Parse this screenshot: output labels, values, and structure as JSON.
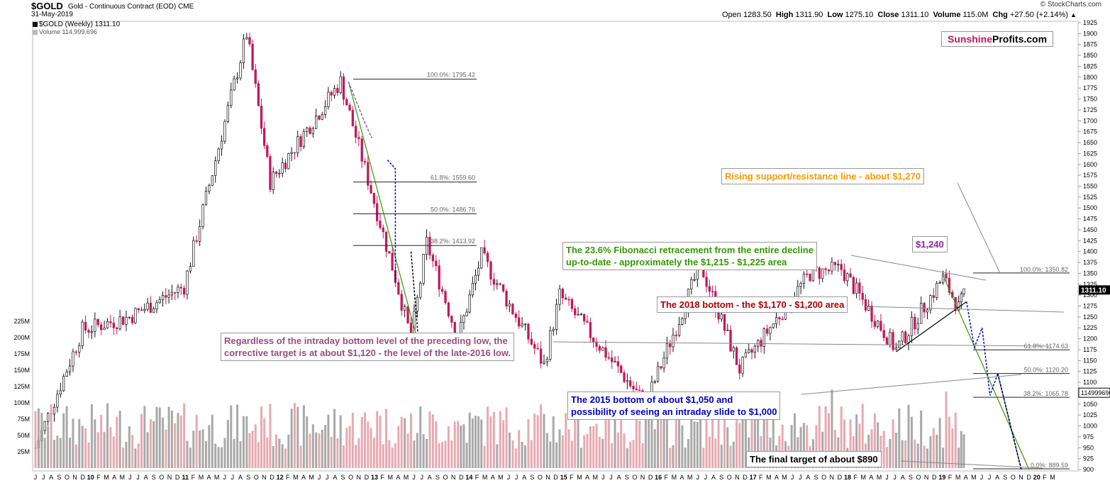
{
  "header": {
    "ticker": "$GOLD",
    "subtitle": "Gold - Continuous Contract (EOD)",
    "exchange": "CME",
    "date": "31-May-2019",
    "legend_price": "$GOLD (Weekly) 1311.10",
    "legend_volume": "Volume 114,999,696",
    "credit": "© StockCharts.com",
    "ohlc": {
      "open_label": "Open",
      "open": "1283.50",
      "high_label": "High",
      "high": "1311.90",
      "low_label": "Low",
      "low": "1275.10",
      "close_label": "Close",
      "close": "1311.10",
      "volume_label": "Volume",
      "volume": "115.0M",
      "chg_label": "Chg",
      "chg": "+27.50 (+2.14%)"
    }
  },
  "logo": {
    "part1": "Sunshine",
    "part2": "Profits.com",
    "color1": "#c2185b",
    "color2": "#000000"
  },
  "annotations": {
    "rising_line": "Rising support/resistance line - about $1,270",
    "fib_line1": "The 23.6% Fibonacci retracement from the entire decline",
    "fib_line2": "up-to-date - approximately the $1,215 - $1,225 area",
    "bottom_2018": "The 2018 bottom - the $1,170 - $1,200 area",
    "regardless_line1": "Regardless of the intraday bottom level of the preceding low, the",
    "regardless_line2": "corrective target is at about $1,120 - the level of the late-2016 low.",
    "bottom_2015_line1": "The 2015 bottom of about $1,050 and",
    "bottom_2015_line2": "possibility of seeing an intraday slide to $1,000",
    "final_target": "The final target of about $890",
    "price_1240": "$1,240"
  },
  "colors": {
    "up": "#111111",
    "down": "#c2185b",
    "vol_up": "#a0a0a0",
    "vol_down": "#e5a0a8",
    "orange": "#ff9900",
    "green": "#339900",
    "darkred": "#b00000",
    "purple": "#9b59b6",
    "blue": "#0000cc",
    "fib_purple": "#7b1fa2"
  },
  "chart_data": {
    "type": "candlestick",
    "title": "$GOLD Gold - Continuous Contract (EOD)",
    "interval": "Weekly",
    "ylim": [
      900,
      1925
    ],
    "y_ticks": [
      900,
      925,
      950,
      975,
      1000,
      1025,
      1050,
      1075,
      1100,
      1125,
      1150,
      1175,
      1200,
      1225,
      1250,
      1275,
      1300,
      1325,
      1350,
      1375,
      1400,
      1425,
      1450,
      1475,
      1500,
      1525,
      1550,
      1575,
      1600,
      1625,
      1650,
      1675,
      1700,
      1725,
      1750,
      1775,
      1800,
      1825,
      1850,
      1875,
      1900,
      1925
    ],
    "volume_ticks": [
      "25M",
      "50M",
      "75M",
      "100M",
      "125M",
      "150M",
      "175M",
      "200M",
      "225M"
    ],
    "volume_tick_values": [
      25,
      50,
      75,
      100,
      125,
      150,
      175,
      200,
      225
    ],
    "last_price_label": "1311.10",
    "last_volume_label": "114999696",
    "x_month_labels": [
      "J",
      "J",
      "A",
      "S",
      "O",
      "N",
      "D",
      "10",
      "F",
      "M",
      "A",
      "M",
      "J",
      "J",
      "A",
      "S",
      "O",
      "N",
      "D",
      "11",
      "F",
      "M",
      "A",
      "M",
      "J",
      "J",
      "A",
      "S",
      "O",
      "N",
      "D",
      "12",
      "F",
      "M",
      "A",
      "M",
      "J",
      "J",
      "A",
      "S",
      "O",
      "N",
      "D",
      "13",
      "F",
      "M",
      "A",
      "M",
      "J",
      "J",
      "A",
      "S",
      "O",
      "N",
      "D",
      "14",
      "F",
      "M",
      "A",
      "M",
      "J",
      "J",
      "A",
      "S",
      "O",
      "N",
      "D",
      "15",
      "F",
      "M",
      "A",
      "M",
      "J",
      "J",
      "A",
      "S",
      "O",
      "N",
      "D",
      "16",
      "F",
      "M",
      "A",
      "M",
      "J",
      "J",
      "A",
      "S",
      "O",
      "N",
      "D",
      "17",
      "F",
      "M",
      "A",
      "M",
      "J",
      "J",
      "A",
      "S",
      "O",
      "N",
      "D",
      "18",
      "F",
      "M",
      "A",
      "M",
      "J",
      "J",
      "A",
      "S",
      "O",
      "N",
      "D",
      "19",
      "F",
      "M",
      "A",
      "M",
      "J",
      "J",
      "A",
      "S",
      "O",
      "N",
      "D",
      "20",
      "F",
      "M"
    ],
    "key_points": [
      {
        "date": "2009-06",
        "price": 950
      },
      {
        "date": "2009-12",
        "price": 1220
      },
      {
        "date": "2010-06",
        "price": 1250
      },
      {
        "date": "2011-01",
        "price": 1320
      },
      {
        "date": "2011-09",
        "price": 1900
      },
      {
        "date": "2011-12",
        "price": 1560
      },
      {
        "date": "2012-09",
        "price": 1790
      },
      {
        "date": "2013-04",
        "price": 1340
      },
      {
        "date": "2013-06",
        "price": 1200
      },
      {
        "date": "2013-08",
        "price": 1420
      },
      {
        "date": "2013-12",
        "price": 1200
      },
      {
        "date": "2014-03",
        "price": 1390
      },
      {
        "date": "2014-11",
        "price": 1140
      },
      {
        "date": "2015-01",
        "price": 1300
      },
      {
        "date": "2015-12",
        "price": 1050
      },
      {
        "date": "2016-07",
        "price": 1370
      },
      {
        "date": "2016-12",
        "price": 1130
      },
      {
        "date": "2017-09",
        "price": 1350
      },
      {
        "date": "2018-01",
        "price": 1360
      },
      {
        "date": "2018-08",
        "price": 1175
      },
      {
        "date": "2019-02",
        "price": 1340
      },
      {
        "date": "2019-04",
        "price": 1270
      },
      {
        "date": "2019-05",
        "price": 1311.1
      }
    ],
    "fib_levels_left": [
      {
        "label": "100.0%: 1795.42",
        "price": 1795.42
      },
      {
        "label": "61.8%: 1559.60",
        "price": 1559.6
      },
      {
        "label": "50.0%: 1486.76",
        "price": 1486.76
      },
      {
        "label": "38.2%: 1413.92",
        "price": 1413.92
      },
      {
        "label": "0.0%: 1178.10",
        "price": 1178.1
      }
    ],
    "fib_levels_right": [
      {
        "label": "100.0%: 1350.82",
        "price": 1350.82
      },
      {
        "label": "61.8%: 1174.63",
        "price": 1174.63
      },
      {
        "label": "50.0%: 1120.20",
        "price": 1120.2
      },
      {
        "label": "38.2%: 1065.78",
        "price": 1065.78
      },
      {
        "label": "0.0%: 889.59",
        "price": 889.59
      }
    ]
  }
}
